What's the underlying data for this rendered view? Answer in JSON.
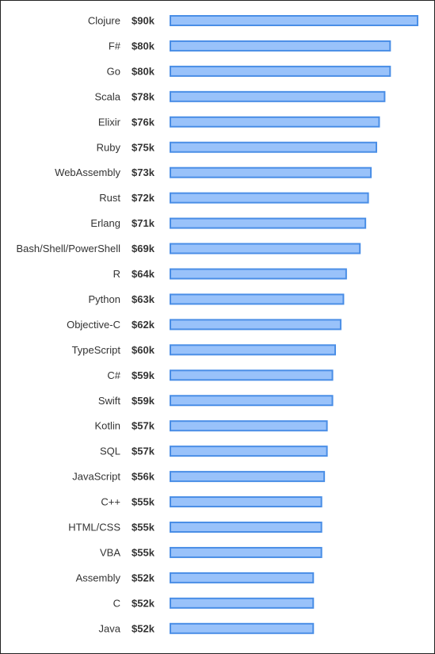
{
  "chart_data": {
    "type": "bar",
    "orientation": "horizontal",
    "title": "",
    "xlabel": "",
    "ylabel": "",
    "grid": false,
    "value_prefix": "$",
    "value_suffix": "k",
    "xlim": [
      0,
      90
    ],
    "categories": [
      "Clojure",
      "F#",
      "Go",
      "Scala",
      "Elixir",
      "Ruby",
      "WebAssembly",
      "Rust",
      "Erlang",
      "Bash/Shell/PowerShell",
      "R",
      "Python",
      "Objective-C",
      "TypeScript",
      "C#",
      "Swift",
      "Kotlin",
      "SQL",
      "JavaScript",
      "C++",
      "HTML/CSS",
      "VBA",
      "Assembly",
      "C",
      "Java"
    ],
    "values": [
      90,
      80,
      80,
      78,
      76,
      75,
      73,
      72,
      71,
      69,
      64,
      63,
      62,
      60,
      59,
      59,
      57,
      57,
      56,
      55,
      55,
      55,
      52,
      52,
      52
    ],
    "value_labels": [
      "$90k",
      "$80k",
      "$80k",
      "$78k",
      "$76k",
      "$75k",
      "$73k",
      "$72k",
      "$71k",
      "$69k",
      "$64k",
      "$63k",
      "$62k",
      "$60k",
      "$59k",
      "$59k",
      "$57k",
      "$57k",
      "$56k",
      "$55k",
      "$55k",
      "$55k",
      "$52k",
      "$52k",
      "$52k"
    ],
    "colors": {
      "bar_fill": "#99c2fa",
      "bar_stroke": "#4a8ee6"
    }
  }
}
